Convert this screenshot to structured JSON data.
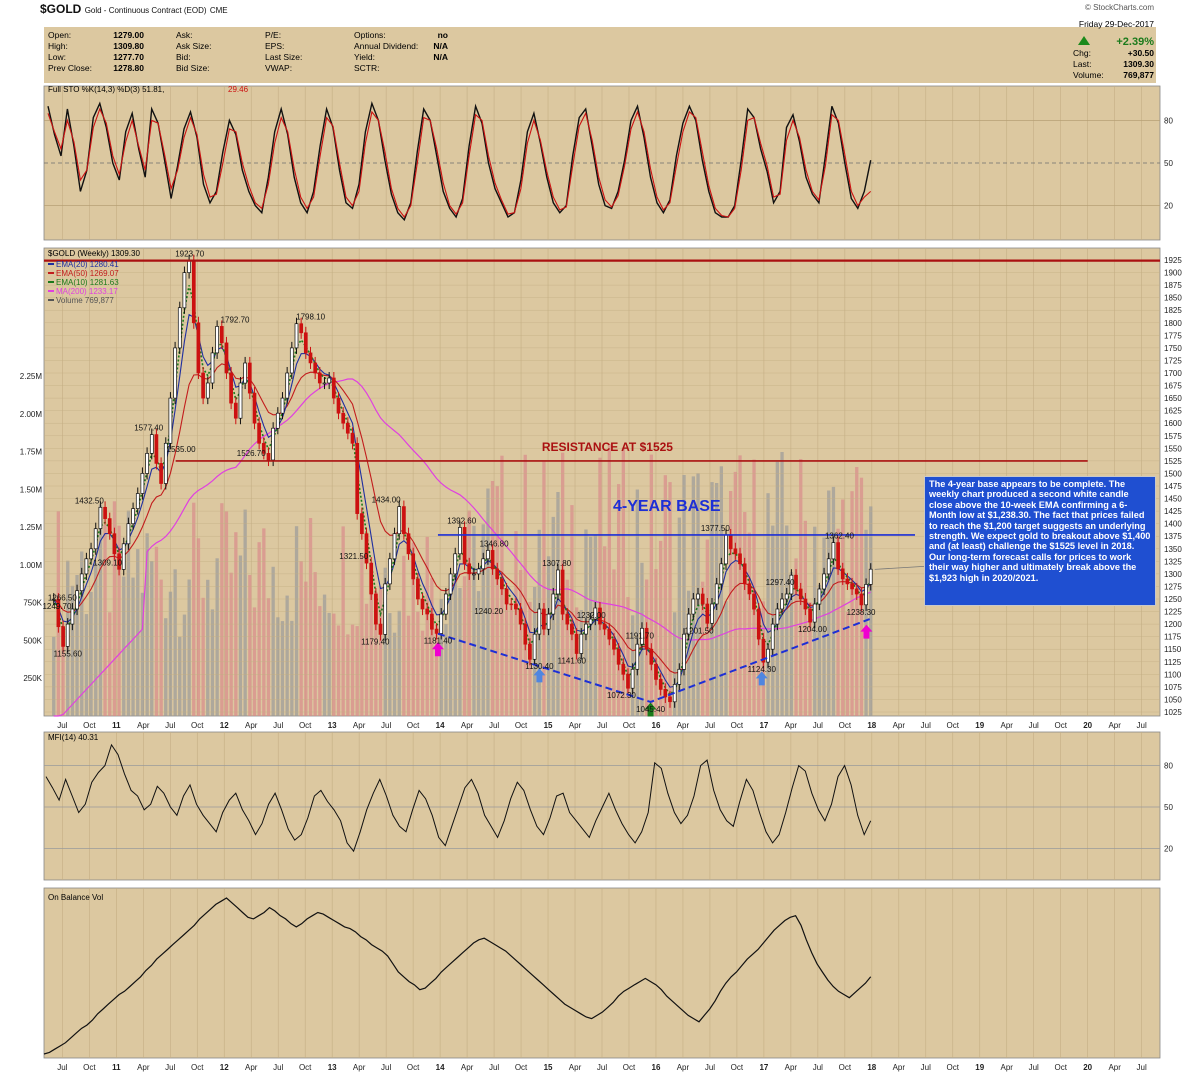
{
  "header": {
    "symbol": "$GOLD",
    "name": "Gold - Continuous Contract (EOD)",
    "exchange": "CME",
    "brand": "© StockCharts.com",
    "date_line": "Friday  29-Dec-2017",
    "change_pct": "+2.39%",
    "chg_label": "Chg:",
    "chg_value": "+30.50",
    "last_label": "Last:",
    "last_value": "1309.30",
    "volume_label": "Volume:",
    "volume_value": "769,877",
    "quote_fields": [
      {
        "label": "Open:",
        "value": "1279.00"
      },
      {
        "label": "High:",
        "value": "1309.80"
      },
      {
        "label": "Low:",
        "value": "1277.70"
      },
      {
        "label": "Prev Close:",
        "value": "1278.80"
      }
    ],
    "quote_fields2": [
      {
        "label": "Ask:",
        "value": ""
      },
      {
        "label": "Ask Size:",
        "value": ""
      },
      {
        "label": "Bid:",
        "value": ""
      },
      {
        "label": "Bid Size:",
        "value": ""
      }
    ],
    "quote_fields3": [
      {
        "label": "P/E:",
        "value": ""
      },
      {
        "label": "EPS:",
        "value": ""
      },
      {
        "label": "Last Size:",
        "value": ""
      },
      {
        "label": "VWAP:",
        "value": ""
      }
    ],
    "quote_fields4": [
      {
        "label": "Options:",
        "value": "no"
      },
      {
        "label": "Annual Dividend:",
        "value": "N/A"
      },
      {
        "label": "Yield:",
        "value": "N/A"
      },
      {
        "label": "SCTR:",
        "value": ""
      }
    ]
  },
  "colors": {
    "panel_bg": "#dcc8a0",
    "price_up": "#111111",
    "price_down": "#cc1111",
    "ema20": "#1f2fa0",
    "ema50": "#c21d1d",
    "ema10": "#1b7a1b",
    "ma200": "#e040e0",
    "volume_up": "#9a9a9a",
    "volume_down": "#d98a8a",
    "resistance": "#aa1111",
    "base": "#1d2fd6",
    "annotation_bg": "#1f4fd1"
  },
  "chart_data": [
    {
      "type": "line",
      "panel": "stochastic",
      "title": "Full STO %K(14,3) %D(3) 51.81, 29.46",
      "legend_main": "Full STO %K(14,3) %D(3) 51.81,",
      "legend_sub": "29.46",
      "ylim": [
        0,
        100
      ],
      "yticks": [
        80,
        50,
        20
      ],
      "series": [
        {
          "name": "%K(14,3)",
          "color": "#111111",
          "values": [
            90,
            70,
            55,
            88,
            62,
            30,
            45,
            82,
            92,
            75,
            50,
            38,
            72,
            85,
            60,
            40,
            88,
            78,
            52,
            25,
            48,
            74,
            86,
            68,
            35,
            22,
            30,
            58,
            80,
            70,
            45,
            30,
            20,
            15,
            40,
            72,
            88,
            70,
            40,
            22,
            15,
            30,
            62,
            88,
            75,
            45,
            22,
            18,
            35,
            72,
            92,
            80,
            52,
            28,
            15,
            10,
            22,
            58,
            88,
            80,
            55,
            30,
            18,
            12,
            25,
            62,
            90,
            78,
            50,
            32,
            22,
            12,
            15,
            38,
            72,
            85,
            64,
            40,
            22,
            15,
            20,
            55,
            82,
            88,
            62,
            35,
            20,
            18,
            30,
            52,
            80,
            90,
            68,
            40,
            22,
            15,
            24,
            55,
            78,
            90,
            80,
            52,
            30,
            15,
            12,
            12,
            20,
            52,
            88,
            82,
            60,
            44,
            22,
            30,
            75,
            84,
            65,
            40,
            28,
            22,
            55,
            90,
            78,
            50,
            25,
            18,
            30,
            52
          ]
        },
        {
          "name": "%D(3)",
          "color": "#cc1111",
          "values": [
            85,
            72,
            60,
            80,
            65,
            38,
            45,
            75,
            88,
            78,
            55,
            42,
            65,
            80,
            62,
            45,
            80,
            78,
            56,
            32,
            45,
            68,
            82,
            70,
            42,
            26,
            28,
            50,
            74,
            72,
            50,
            34,
            22,
            18,
            35,
            64,
            82,
            72,
            46,
            26,
            18,
            26,
            55,
            82,
            76,
            50,
            26,
            20,
            30,
            64,
            86,
            80,
            58,
            32,
            18,
            12,
            20,
            50,
            82,
            80,
            60,
            36,
            20,
            14,
            22,
            55,
            84,
            80,
            55,
            36,
            24,
            14,
            15,
            32,
            64,
            80,
            66,
            44,
            26,
            17,
            19,
            48,
            76,
            85,
            66,
            40,
            24,
            19,
            27,
            48,
            74,
            86,
            72,
            46,
            26,
            17,
            22,
            48,
            72,
            86,
            82,
            58,
            34,
            18,
            13,
            12,
            18,
            45,
            80,
            82,
            64,
            48,
            26,
            28,
            66,
            80,
            68,
            45,
            30,
            24,
            48,
            84,
            80,
            56,
            30,
            20,
            26,
            30
          ]
        }
      ]
    },
    {
      "type": "line",
      "panel": "price",
      "title": "$GOLD (Weekly) 1309.30",
      "x_axis": [
        "Jul",
        "Oct",
        "11",
        "Apr",
        "Jul",
        "Oct",
        "12",
        "Apr",
        "Jul",
        "Oct",
        "13",
        "Apr",
        "Jul",
        "Oct",
        "14",
        "Apr",
        "Jul",
        "Oct",
        "15",
        "Apr",
        "Jul",
        "Oct",
        "16",
        "Apr",
        "Jul",
        "Oct",
        "17",
        "Apr",
        "Jul",
        "Oct",
        "18",
        "Apr",
        "Jul",
        "Oct",
        "19",
        "Apr",
        "Jul",
        "Oct",
        "20",
        "Apr",
        "Jul"
      ],
      "ylim": [
        1025,
        1925
      ],
      "yticks": [
        1900,
        1875,
        1850,
        1825,
        1800,
        1775,
        1750,
        1725,
        1700,
        1675,
        1650,
        1625,
        1600,
        1575,
        1550,
        1525,
        1500,
        1475,
        1450,
        1425,
        1400,
        1375,
        1350,
        1325,
        1300,
        1275,
        1250,
        1225,
        1200,
        1175,
        1150,
        1125,
        1100,
        1075,
        1050,
        1025
      ],
      "right_top_label": "1925",
      "volume_ticks": [
        "2.25M",
        "2.00M",
        "1.75M",
        "1.50M",
        "1.25M",
        "1.00M",
        "750K",
        "500K",
        "250K"
      ],
      "volume_tick_values": [
        2250000,
        2000000,
        1750000,
        1500000,
        1250000,
        1000000,
        750000,
        500000,
        250000
      ],
      "volume_ylim": [
        0,
        2700000
      ],
      "legend": [
        {
          "text": "EMA(20) 1280.41",
          "color": "#1f2fa0"
        },
        {
          "text": "EMA(50) 1269.07",
          "color": "#c21d1d"
        },
        {
          "text": "EMA(10) 1281.63",
          "color": "#1b7a1b"
        },
        {
          "text": "MA(200) 1233.17",
          "color": "#e040e0"
        },
        {
          "text": "Volume 769,877",
          "color": "#555555"
        }
      ],
      "x_start": 2010.42,
      "x_end": 2017.99,
      "close": [
        1249.7,
        1195,
        1155.6,
        1200,
        1230,
        1266.5,
        1300,
        1330,
        1350,
        1390,
        1432.5,
        1410,
        1380,
        1340,
        1309.1,
        1360,
        1400,
        1430,
        1460,
        1500,
        1540,
        1577.4,
        1520,
        1480,
        1560,
        1650,
        1750,
        1830,
        1900,
        1923.7,
        1800,
        1700,
        1650,
        1680,
        1740,
        1792.7,
        1760,
        1700,
        1640,
        1610,
        1680,
        1720,
        1660,
        1600,
        1560,
        1540,
        1526.7,
        1590,
        1620,
        1650,
        1700,
        1750,
        1798.1,
        1780,
        1740,
        1720,
        1700,
        1680,
        1680,
        1690,
        1650,
        1620,
        1600,
        1580,
        1560,
        1420,
        1380,
        1321.5,
        1260,
        1200,
        1179.4,
        1280,
        1330,
        1380,
        1434,
        1380,
        1340,
        1290,
        1250,
        1230,
        1220,
        1190,
        1181.4,
        1220,
        1260,
        1300,
        1340,
        1392.6,
        1320,
        1300,
        1300,
        1310,
        1330,
        1346.8,
        1310,
        1290,
        1270,
        1240.2,
        1240,
        1230,
        1200,
        1160,
        1130,
        1180,
        1230,
        1190,
        1220,
        1260,
        1307.8,
        1220,
        1200,
        1180,
        1141.6,
        1180,
        1200,
        1210,
        1232,
        1200,
        1190,
        1170,
        1150,
        1120,
        1100,
        1072.3,
        1110,
        1160,
        1191.7,
        1150,
        1120,
        1090,
        1070,
        1055,
        1045.4,
        1080,
        1110,
        1180,
        1220,
        1250,
        1260,
        1240,
        1201.5,
        1240,
        1280,
        1320,
        1377.5,
        1350,
        1340,
        1320,
        1280,
        1260,
        1230,
        1170,
        1124.3,
        1150,
        1200,
        1230,
        1250,
        1260,
        1297.4,
        1270,
        1250,
        1230,
        1204,
        1240,
        1270,
        1300,
        1330,
        1362.4,
        1310,
        1290,
        1280,
        1270,
        1260,
        1238.3,
        1279,
        1309.3
      ]
    },
    {
      "type": "line",
      "panel": "mfi",
      "title": "MFI(14) 40.31",
      "ylim": [
        0,
        100
      ],
      "yticks": [
        80,
        50,
        20
      ],
      "values": [
        72,
        64,
        55,
        70,
        58,
        46,
        52,
        68,
        75,
        80,
        95,
        88,
        74,
        62,
        58,
        48,
        52,
        65,
        60,
        50,
        44,
        58,
        66,
        52,
        44,
        38,
        32,
        46,
        55,
        60,
        48,
        40,
        30,
        38,
        52,
        60,
        48,
        34,
        26,
        30,
        42,
        58,
        62,
        54,
        48,
        40,
        24,
        18,
        32,
        48,
        60,
        70,
        58,
        44,
        36,
        32,
        48,
        62,
        56,
        44,
        28,
        22,
        36,
        50,
        64,
        70,
        60,
        44,
        36,
        28,
        40,
        56,
        68,
        62,
        48,
        36,
        30,
        42,
        58,
        60,
        46,
        40,
        34,
        28,
        40,
        50,
        60,
        48,
        38,
        30,
        24,
        32,
        46,
        82,
        78,
        60,
        46,
        38,
        44,
        58,
        80,
        84,
        62,
        48,
        40,
        36,
        54,
        70,
        62,
        46,
        32,
        24,
        30,
        46,
        64,
        80,
        76,
        60,
        48,
        40,
        52,
        72,
        80,
        66,
        44,
        30,
        40
      ]
    },
    {
      "type": "line",
      "panel": "obv",
      "title": "On Balance Vol",
      "values": [
        8,
        10,
        14,
        18,
        22,
        28,
        34,
        40,
        44,
        50,
        58,
        64,
        70,
        76,
        82,
        86,
        92,
        98,
        104,
        112,
        118,
        126,
        132,
        138,
        144,
        150,
        156,
        162,
        168,
        176,
        182,
        188,
        194,
        198,
        202,
        196,
        190,
        184,
        178,
        176,
        180,
        184,
        190,
        186,
        180,
        176,
        170,
        166,
        170,
        176,
        180,
        184,
        182,
        178,
        174,
        170,
        166,
        164,
        160,
        154,
        150,
        144,
        140,
        136,
        130,
        120,
        110,
        104,
        98,
        94,
        88,
        90,
        96,
        102,
        110,
        116,
        122,
        128,
        134,
        140,
        146,
        150,
        152,
        148,
        144,
        140,
        136,
        130,
        124,
        118,
        112,
        106,
        100,
        94,
        88,
        82,
        76,
        70,
        66,
        62,
        58,
        54,
        52,
        56,
        60,
        66,
        72,
        80,
        86,
        90,
        94,
        98,
        102,
        98,
        94,
        88,
        80,
        74,
        68,
        62,
        56,
        52,
        48,
        56,
        64,
        74,
        86,
        96,
        104,
        110,
        118,
        126,
        132,
        138,
        146,
        154,
        162,
        168,
        174,
        178,
        180,
        168,
        150,
        134,
        120,
        110,
        100,
        92,
        86,
        82,
        78,
        84,
        90,
        96,
        104
      ]
    }
  ],
  "annotations": {
    "resistance_label": "RESISTANCE AT $1525",
    "base_label": "4-YEAR BASE",
    "note": "The 4-year base appears to be complete. The weekly chart produced a second white candle close above the 10-week EMA confirming a 6-Month low at $1,238.30. The fact that prices failed to reach the $1,200 target suggests an underlying strength. We expect gold to breakout above $1,400 and (at least) challenge the $1525 level in 2018. Our long-term forecast calls for prices to work their way higher and ultimately break above the $1,923 high in 2020/2021.",
    "resistance_value": 1525,
    "top_value": 1923.7,
    "base_value": 1377.5,
    "price_labels": [
      {
        "text": "1249.70",
        "t": 2010.45,
        "v": 1249.7
      },
      {
        "text": "1266.50",
        "t": 2010.5,
        "v": 1266.5
      },
      {
        "text": "1155.60",
        "t": 2010.55,
        "v": 1155.6
      },
      {
        "text": "1432.50",
        "t": 2010.75,
        "v": 1432.5
      },
      {
        "text": "1309.10",
        "t": 2010.92,
        "v": 1309.1
      },
      {
        "text": "1577.40",
        "t": 2011.3,
        "v": 1577.4
      },
      {
        "text": "1535.00",
        "t": 2011.6,
        "v": 1535
      },
      {
        "text": "1923.70",
        "t": 2011.68,
        "v": 1923.7
      },
      {
        "text": "1792.70",
        "t": 2012.1,
        "v": 1792.7
      },
      {
        "text": "1526.70",
        "t": 2012.25,
        "v": 1526.7
      },
      {
        "text": "1798.10",
        "t": 2012.8,
        "v": 1798.1
      },
      {
        "text": "1321.50",
        "t": 2013.2,
        "v": 1321.5
      },
      {
        "text": "1434.00",
        "t": 2013.5,
        "v": 1434
      },
      {
        "text": "1179.40",
        "t": 2013.4,
        "v": 1179.4
      },
      {
        "text": "1181.40",
        "t": 2013.98,
        "v": 1181.4
      },
      {
        "text": "1392.60",
        "t": 2014.2,
        "v": 1392.6
      },
      {
        "text": "1346.80",
        "t": 2014.5,
        "v": 1346.8
      },
      {
        "text": "1240.20",
        "t": 2014.45,
        "v": 1240.2
      },
      {
        "text": "1130.40",
        "t": 2014.92,
        "v": 1130.4
      },
      {
        "text": "1307.80",
        "t": 2015.08,
        "v": 1307.8
      },
      {
        "text": "1141.60",
        "t": 2015.22,
        "v": 1141.6
      },
      {
        "text": "1232.00",
        "t": 2015.4,
        "v": 1232
      },
      {
        "text": "1191.70",
        "t": 2015.85,
        "v": 1191.7
      },
      {
        "text": "1072.30",
        "t": 2015.68,
        "v": 1072.3
      },
      {
        "text": "1045.40",
        "t": 2015.95,
        "v": 1045.4
      },
      {
        "text": "1201.50",
        "t": 2016.4,
        "v": 1201.5
      },
      {
        "text": "1377.50",
        "t": 2016.55,
        "v": 1377.5
      },
      {
        "text": "1124.30",
        "t": 2016.98,
        "v": 1124.3
      },
      {
        "text": "1297.40",
        "t": 2017.15,
        "v": 1297.4
      },
      {
        "text": "1204.00",
        "t": 2017.45,
        "v": 1204
      },
      {
        "text": "1362.40",
        "t": 2017.7,
        "v": 1362.4
      },
      {
        "text": "1238.30",
        "t": 2017.9,
        "v": 1238.3
      }
    ]
  }
}
